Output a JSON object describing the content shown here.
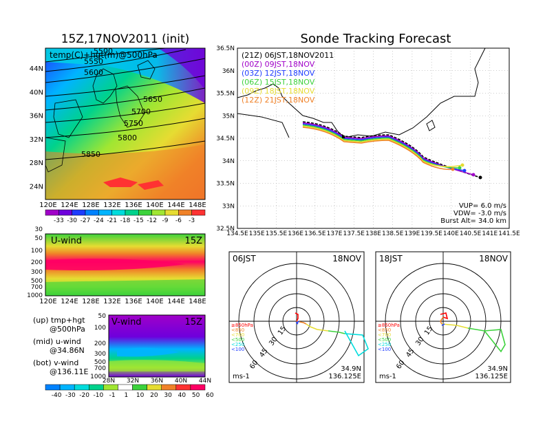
{
  "titles": {
    "map_init": "15Z,17NOV2011 (init)",
    "tracking": "Sonde Tracking Forecast"
  },
  "map500": {
    "label": "temp(C)+hgt(m)@500hPa",
    "lon_ticks": [
      "120E",
      "124E",
      "128E",
      "132E",
      "136E",
      "140E",
      "144E",
      "148E"
    ],
    "lat_ticks": [
      "44N",
      "40N",
      "36N",
      "32N",
      "28N",
      "24N"
    ],
    "contour_labels": [
      "5500",
      "5550",
      "5600",
      "5650",
      "5700",
      "5750",
      "5800",
      "5850"
    ],
    "colorbar_labels": [
      "-33",
      "-30",
      "-27",
      "-24",
      "-21",
      "-18",
      "-15",
      "-12",
      "-9",
      "-6",
      "-3"
    ],
    "colorbar_colors": [
      "#a000c8",
      "#6e00dc",
      "#1e3cff",
      "#0082ff",
      "#00b4ff",
      "#00dcdc",
      "#00d28c",
      "#3cd23c",
      "#a0e632",
      "#e6dc32",
      "#f08228",
      "#ff3232"
    ]
  },
  "uwind": {
    "title": "U-wind",
    "time": "15Z",
    "levels": [
      "30",
      "50",
      "100",
      "200",
      "300",
      "500",
      "700",
      "1000"
    ],
    "lon_ticks": [
      "120E",
      "124E",
      "128E",
      "132E",
      "136E",
      "140E",
      "144E",
      "148E"
    ]
  },
  "vwind": {
    "title": "V-wind",
    "time": "15Z",
    "levels": [
      "50",
      "100",
      "200",
      "300",
      "500",
      "700",
      "1000"
    ],
    "lat_ticks": [
      "28N",
      "32N",
      "36N",
      "40N",
      "44N"
    ]
  },
  "legend_text": [
    {
      "a": "(up) tmp+hgt",
      "b": "@500hPa"
    },
    {
      "a": "(mid) u-wind",
      "b": "@34.86N"
    },
    {
      "a": "(bot) v-wind",
      "b": "@136.11E"
    }
  ],
  "wind_colorbar": {
    "labels": [
      "-40",
      "-30",
      "-20",
      "-10",
      "-1",
      "1",
      "10",
      "20",
      "30",
      "40",
      "50",
      "60"
    ],
    "colors": [
      "#0082ff",
      "#00b4ff",
      "#00dcdc",
      "#00d28c",
      "#a0e632",
      "#ffffff",
      "#3cd23c",
      "#e6dc32",
      "#f08228",
      "#ff3232",
      "#ff0064"
    ]
  },
  "tracking": {
    "legend": [
      {
        "text": "(21Z)  06JST,18NOV2011",
        "color": "#000000"
      },
      {
        "text": "(00Z)  09JST,18NOV",
        "color": "#a000c8"
      },
      {
        "text": "(03Z)  12JST,18NOV",
        "color": "#1e3cff"
      },
      {
        "text": "(06Z)  15JST,18NOV",
        "color": "#3cd23c"
      },
      {
        "text": "(09Z)  18JST,18NOV",
        "color": "#e6dc32"
      },
      {
        "text": "(12Z)  21JST,18NOV",
        "color": "#f08228"
      }
    ],
    "params": [
      "VUP=  6.0 m/s",
      "VDW= -3.0 m/s",
      "Burst Alt= 34.0 km"
    ],
    "lon_ticks": [
      "134.5E",
      "135E",
      "135.5E",
      "136E",
      "136.5E",
      "137E",
      "137.5E",
      "138E",
      "138.5E",
      "139E",
      "139.5E",
      "140E",
      "140.5E",
      "141E",
      "141.5E"
    ],
    "lat_ticks": [
      "36.5N",
      "36N",
      "35.5N",
      "35N",
      "34.5N",
      "34N",
      "33.5N",
      "33N",
      "32.5N"
    ]
  },
  "hodo_left": {
    "time": "06JST",
    "date": "18NOV",
    "rings": [
      "15",
      "30",
      "45",
      "60"
    ],
    "levels": [
      {
        "text": "≥850hPa",
        "color": "#ff0000"
      },
      {
        "text": "<850",
        "color": "#f08228"
      },
      {
        "text": "<700",
        "color": "#e6dc32"
      },
      {
        "text": "<500",
        "color": "#3cd23c"
      },
      {
        "text": "<250",
        "color": "#00dcdc"
      },
      {
        "text": "<100",
        "color": "#1e3cff"
      }
    ],
    "unit": "ms-1",
    "loc1": "34.9N",
    "loc2": "136.125E"
  },
  "hodo_right": {
    "time": "18JST",
    "date": "18NOV",
    "rings": [
      "15",
      "30",
      "45",
      "60"
    ],
    "levels": [
      {
        "text": "≥850hPa",
        "color": "#ff0000"
      },
      {
        "text": "<850",
        "color": "#f08228"
      },
      {
        "text": "<700",
        "color": "#e6dc32"
      },
      {
        "text": "<500",
        "color": "#3cd23c"
      },
      {
        "text": "<250",
        "color": "#00dcdc"
      },
      {
        "text": "<100",
        "color": "#1e3cff"
      }
    ],
    "unit": "ms-1",
    "loc1": "34.9N",
    "loc2": "136.125E"
  }
}
